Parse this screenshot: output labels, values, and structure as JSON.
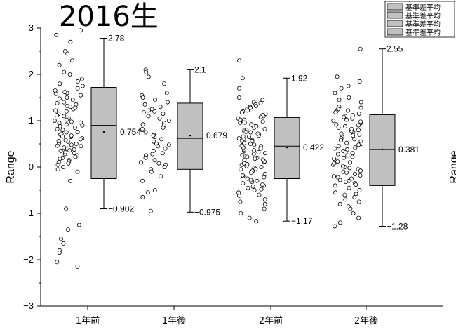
{
  "chart_data": {
    "type": "box",
    "title": "2016生",
    "ylabel": "Range",
    "right_ylabel_fragment": "Range",
    "ylim": [
      -3,
      3
    ],
    "yticks": [
      "3",
      "2",
      "1",
      "0",
      "−1",
      "−2",
      "−3"
    ],
    "categories": [
      "1年前",
      "1年後",
      "2年前",
      "2年後"
    ],
    "legend": [
      "基準差平均",
      "基準差平均",
      "基準差平均",
      "基準差平均"
    ],
    "boxes": [
      {
        "category": "1年前",
        "whisker_low": -0.902,
        "q1": -0.25,
        "median": 0.9,
        "q3": 1.72,
        "whisker_high": 2.78,
        "mean": 0.754,
        "labels": {
          "high": "2.78",
          "mean": "0.754",
          "low": "−0.902"
        },
        "points": [
          2.95,
          2.85,
          2.7,
          2.5,
          2.45,
          2.3,
          2.2,
          2.05,
          2.0,
          1.9,
          1.85,
          1.8,
          1.75,
          1.7,
          1.6,
          1.55,
          1.5,
          1.45,
          1.4,
          1.35,
          1.3,
          1.25,
          1.2,
          1.15,
          1.1,
          1.05,
          1.0,
          0.95,
          0.92,
          0.9,
          0.85,
          0.8,
          0.75,
          0.7,
          0.65,
          0.62,
          0.6,
          0.55,
          0.5,
          0.48,
          0.45,
          0.4,
          0.35,
          0.3,
          0.25,
          0.2,
          0.15,
          0.1,
          0.05,
          0.0,
          -0.05,
          -0.1,
          -0.3,
          -0.9,
          -1.25,
          -1.35,
          -1.55,
          -1.65,
          -1.8,
          -1.85,
          -2.05,
          -2.15,
          1.65,
          1.38,
          1.12,
          0.98,
          0.72,
          0.58,
          0.42,
          0.28,
          0.12,
          1.48,
          1.22,
          0.88,
          0.68,
          0.52,
          0.38,
          0.18,
          1.58,
          1.28,
          1.02,
          0.82,
          0.66,
          0.46,
          0.32,
          0.08,
          1.62,
          1.32,
          0.96,
          0.76,
          0.56,
          0.36,
          0.22
        ]
      },
      {
        "category": "1年後",
        "whisker_low": -0.975,
        "q1": -0.05,
        "median": 0.62,
        "q3": 1.38,
        "whisker_high": 2.1,
        "mean": 0.679,
        "labels": {
          "high": "2.1",
          "mean": "0.679",
          "low": "−0.975"
        },
        "points": [
          2.1,
          2.05,
          1.95,
          1.8,
          1.6,
          1.55,
          1.5,
          1.45,
          1.4,
          1.35,
          1.3,
          1.25,
          1.2,
          1.15,
          1.1,
          1.05,
          1.0,
          0.95,
          0.9,
          0.85,
          0.8,
          0.75,
          0.7,
          0.65,
          0.6,
          0.55,
          0.5,
          0.45,
          0.4,
          0.35,
          0.3,
          0.25,
          0.2,
          0.15,
          0.1,
          0.05,
          0.0,
          -0.05,
          -0.1,
          -0.2,
          -0.3,
          -0.5,
          -0.55,
          -0.65,
          -0.95,
          1.18,
          0.92,
          0.68,
          0.48,
          0.28,
          0.08,
          1.22,
          0.82
        ]
      },
      {
        "category": "2年前",
        "whisker_low": -1.17,
        "q1": -0.25,
        "median": 0.45,
        "q3": 1.07,
        "whisker_high": 1.92,
        "mean": 0.422,
        "labels": {
          "high": "1.92",
          "mean": "0.422",
          "low": "−1.17"
        },
        "points": [
          2.3,
          1.92,
          1.7,
          1.5,
          1.45,
          1.4,
          1.35,
          1.3,
          1.25,
          1.2,
          1.15,
          1.1,
          1.05,
          1.0,
          0.95,
          0.9,
          0.85,
          0.8,
          0.75,
          0.7,
          0.65,
          0.6,
          0.55,
          0.5,
          0.45,
          0.4,
          0.35,
          0.3,
          0.25,
          0.2,
          0.15,
          0.1,
          0.05,
          0.0,
          -0.05,
          -0.1,
          -0.15,
          -0.2,
          -0.25,
          -0.3,
          -0.35,
          -0.4,
          -0.45,
          -0.5,
          -0.55,
          -0.6,
          -0.7,
          -0.8,
          -0.9,
          -1.0,
          -1.1,
          -1.17,
          1.28,
          1.12,
          0.98,
          0.82,
          0.68,
          0.52,
          0.38,
          0.22,
          0.08,
          -0.08,
          -0.22,
          -0.38,
          -0.62,
          1.32,
          1.18,
          1.02,
          0.88,
          0.72,
          0.58,
          0.42,
          0.28,
          0.12,
          -0.02,
          -0.18,
          -0.32,
          -0.48,
          -0.75,
          1.22,
          1.08,
          0.92,
          0.78,
          0.62,
          0.48,
          0.32,
          0.18,
          0.02,
          -0.12,
          -0.28,
          -0.42,
          1.38,
          1.02,
          0.76,
          0.56,
          0.36,
          0.16,
          -0.04,
          0.96,
          0.66,
          0.46,
          0.26,
          0.06
        ]
      },
      {
        "category": "2年後",
        "whisker_low": -1.28,
        "q1": -0.4,
        "median": 0.38,
        "q3": 1.13,
        "whisker_high": 2.55,
        "mean": 0.381,
        "labels": {
          "high": "2.55",
          "mean": "0.381",
          "low": "−1.28"
        },
        "points": [
          2.55,
          1.95,
          1.85,
          1.75,
          1.7,
          1.6,
          1.5,
          1.45,
          1.4,
          1.3,
          1.25,
          1.2,
          1.15,
          1.1,
          1.05,
          1.0,
          0.95,
          0.9,
          0.85,
          0.8,
          0.75,
          0.7,
          0.65,
          0.6,
          0.55,
          0.5,
          0.45,
          0.4,
          0.35,
          0.3,
          0.25,
          0.2,
          0.15,
          0.1,
          0.05,
          0.0,
          -0.05,
          -0.1,
          -0.15,
          -0.2,
          -0.25,
          -0.3,
          -0.35,
          -0.4,
          -0.5,
          -0.55,
          -0.6,
          -0.7,
          -0.75,
          -0.8,
          -0.9,
          -1.0,
          -1.1,
          -1.2,
          -1.28,
          1.22,
          1.08,
          0.92,
          0.78,
          0.62,
          0.48,
          0.32,
          0.18,
          0.02,
          -0.12,
          -0.28,
          -0.45,
          -0.65,
          1.28,
          1.12,
          0.98,
          0.82,
          0.68,
          0.52,
          0.38,
          0.22,
          0.08,
          -0.08,
          -0.22,
          -0.38,
          -0.58,
          -0.85,
          1.18,
          1.02,
          0.88,
          0.72,
          0.58,
          0.42,
          0.28,
          0.12,
          -0.02,
          -0.18,
          -0.32
        ]
      }
    ],
    "colors": {
      "box_fill": "#c0c0c0",
      "stroke": "#000000",
      "point_fill": "#ffffff"
    }
  }
}
